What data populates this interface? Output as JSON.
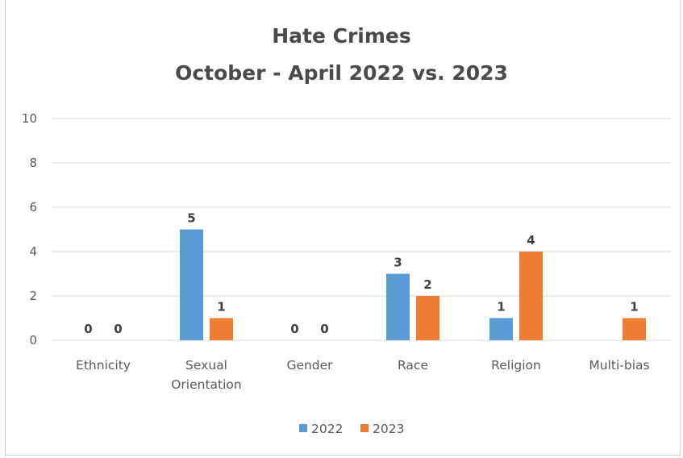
{
  "chart_data": {
    "type": "bar",
    "title": "Hate Crimes",
    "subtitle": "October - April 2022 vs. 2023",
    "categories": [
      [
        "Ethnicity"
      ],
      [
        "Sexual",
        "Orientation"
      ],
      [
        "Gender"
      ],
      [
        "Race"
      ],
      [
        "Religion"
      ],
      [
        "Multi-bias"
      ]
    ],
    "series": [
      {
        "name": "2022",
        "color": "#5b9bd5",
        "values": [
          0,
          5,
          0,
          3,
          1,
          null
        ]
      },
      {
        "name": "2023",
        "color": "#ed7d31",
        "values": [
          0,
          1,
          0,
          2,
          4,
          1
        ]
      }
    ],
    "ylim": [
      0,
      10
    ],
    "yticks": [
      0,
      2,
      4,
      6,
      8,
      10
    ],
    "grid": true,
    "legend_position": "bottom"
  }
}
